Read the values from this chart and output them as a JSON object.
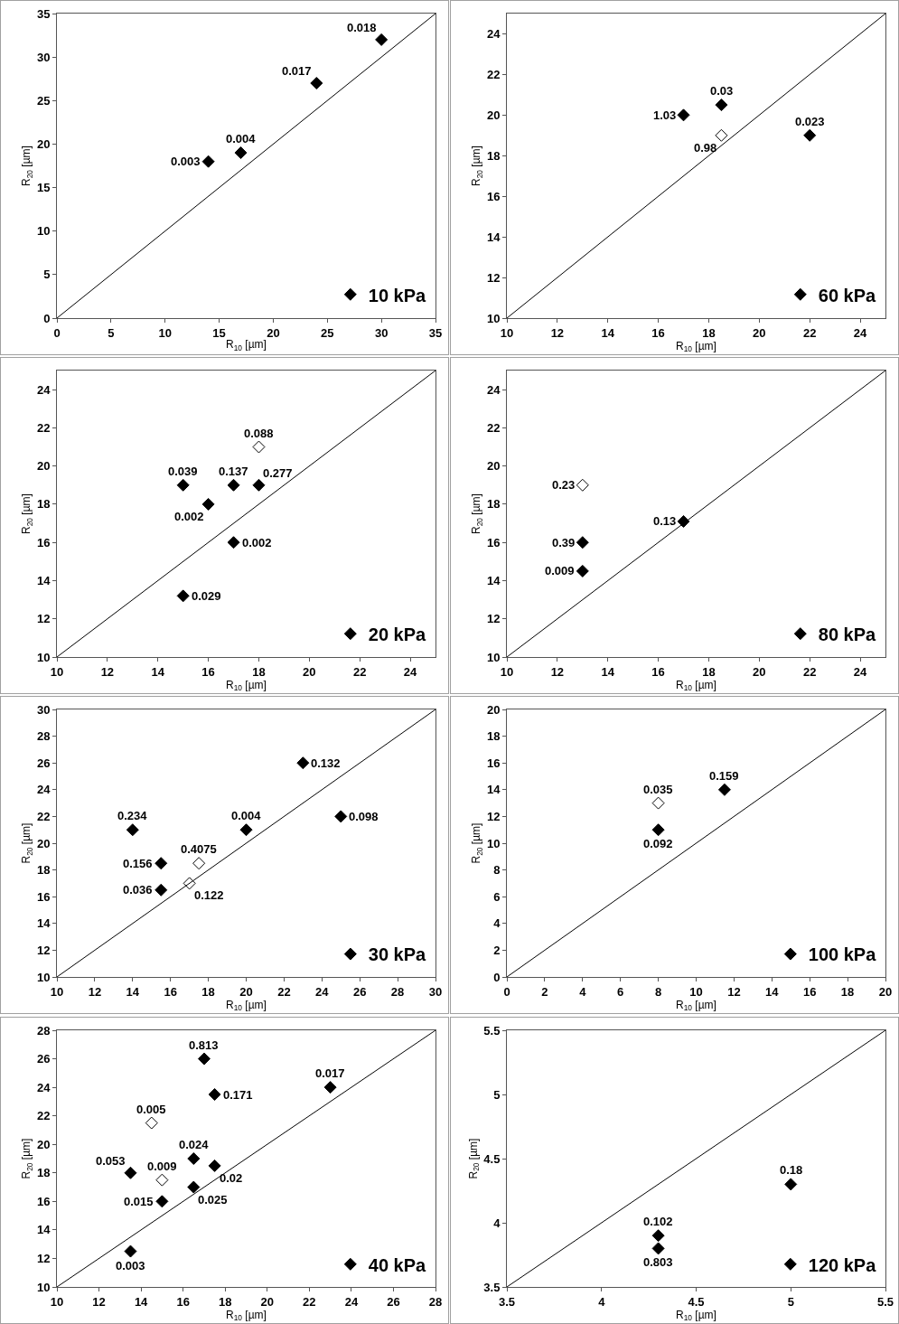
{
  "chart_data": [
    {
      "type": "scatter",
      "xlabel": "R$_{10}$ [µm]",
      "ylabel": "R$_{20}$ [µm]",
      "xlim": [
        0,
        35
      ],
      "xticks": [
        0,
        5,
        10,
        15,
        20,
        25,
        30,
        35
      ],
      "ylim": [
        0,
        35
      ],
      "yticks": [
        0,
        5,
        10,
        15,
        20,
        25,
        30,
        35
      ],
      "legend": "bottom right",
      "marker": "diamond",
      "series": [
        {
          "name": "10 kPa",
          "color": "#000000",
          "x": [
            14,
            17,
            24,
            30
          ],
          "values": [
            18,
            19,
            27,
            32
          ]
        },
        {
          "type": "line",
          "marker": "none",
          "color": "#000000",
          "x": [
            0,
            35
          ],
          "values": [
            0,
            35
          ]
        }
      ],
      "annotations": [
        {
          "text": "0.003",
          "x": 14,
          "y": 18
        },
        {
          "text": "0.004",
          "x": 17,
          "y": 19
        },
        {
          "text": "0.017",
          "x": 24,
          "y": 27
        },
        {
          "text": "0.018",
          "x": 30,
          "y": 32
        }
      ]
    },
    {
      "type": "scatter",
      "xlabel": "R$_{10}$ [µm]",
      "ylabel": "R$_{20}$ [µm]",
      "xlim": [
        10,
        25
      ],
      "xticks": [
        10,
        12,
        14,
        16,
        18,
        20,
        22,
        24
      ],
      "ylim": [
        10,
        25
      ],
      "yticks": [
        10,
        12,
        14,
        16,
        18,
        20,
        22,
        24
      ],
      "legend": "bottom right",
      "marker": "diamond",
      "series": [
        {
          "name": "60 kPa",
          "color": "#000000",
          "x": [
            17,
            18.5,
            22
          ],
          "values": [
            20,
            20.5,
            19
          ]
        },
        {
          "color": "#ffffff",
          "x": [
            18.5
          ],
          "values": [
            19
          ]
        },
        {
          "type": "line",
          "marker": "none",
          "color": "#000000",
          "x": [
            10,
            25
          ],
          "values": [
            10,
            25
          ]
        }
      ],
      "annotations": [
        {
          "text": "1.03",
          "x": 17,
          "y": 20
        },
        {
          "text": "0.03",
          "x": 18.5,
          "y": 20.5
        },
        {
          "text": "0.023",
          "x": 22,
          "y": 19
        },
        {
          "text": "0.98",
          "x": 18.5,
          "y": 19
        }
      ]
    },
    {
      "type": "scatter",
      "xlabel": "R$_{10}$ [µm]",
      "ylabel": "R$_{20}$ [µm]",
      "xlim": [
        10,
        25
      ],
      "xticks": [
        10,
        12,
        14,
        16,
        18,
        20,
        22,
        24
      ],
      "ylim": [
        10,
        25
      ],
      "yticks": [
        10,
        12,
        14,
        16,
        18,
        20,
        22,
        24
      ],
      "legend": "bottom right",
      "marker": "diamond",
      "series": [
        {
          "name": "20 kPa",
          "color": "#000000",
          "x": [
            15,
            16,
            17,
            18,
            17,
            15
          ],
          "values": [
            19,
            18,
            19,
            19,
            16,
            13.2
          ]
        },
        {
          "color": "#ffffff",
          "x": [
            18
          ],
          "values": [
            21
          ]
        },
        {
          "type": "line",
          "marker": "none",
          "color": "#000000",
          "x": [
            10,
            25
          ],
          "values": [
            10,
            25
          ]
        }
      ],
      "annotations": [
        {
          "text": "0.039",
          "x": 15,
          "y": 19
        },
        {
          "text": "0.002",
          "x": 16,
          "y": 18
        },
        {
          "text": "0.137",
          "x": 17,
          "y": 19
        },
        {
          "text": "0.277",
          "x": 18,
          "y": 19
        },
        {
          "text": "0.002",
          "x": 17,
          "y": 16
        },
        {
          "text": "0.029",
          "x": 15,
          "y": 13.2
        },
        {
          "text": "0.088",
          "x": 18,
          "y": 21
        }
      ]
    },
    {
      "type": "scatter",
      "xlabel": "R$_{10}$ [µm]",
      "ylabel": "R$_{20}$ [µm]",
      "xlim": [
        10,
        25
      ],
      "xticks": [
        10,
        12,
        14,
        16,
        18,
        20,
        22,
        24
      ],
      "ylim": [
        10,
        25
      ],
      "yticks": [
        10,
        12,
        14,
        16,
        18,
        20,
        22,
        24
      ],
      "legend": "bottom right",
      "marker": "diamond",
      "series": [
        {
          "name": "80 kPa",
          "color": "#000000",
          "x": [
            13,
            13,
            17
          ],
          "values": [
            16,
            14.5,
            17.1
          ]
        },
        {
          "color": "#ffffff",
          "x": [
            13
          ],
          "values": [
            19
          ]
        },
        {
          "type": "line",
          "marker": "none",
          "color": "#000000",
          "x": [
            10,
            25
          ],
          "values": [
            10,
            25
          ]
        }
      ],
      "annotations": [
        {
          "text": "0.39",
          "x": 13,
          "y": 16
        },
        {
          "text": "0.009",
          "x": 13,
          "y": 14.5
        },
        {
          "text": "0.13",
          "x": 17,
          "y": 17.1
        },
        {
          "text": "0.23",
          "x": 13,
          "y": 19
        }
      ]
    },
    {
      "type": "scatter",
      "xlabel": "R$_{10}$ [µm]",
      "ylabel": "R$_{20}$ [µm]",
      "xlim": [
        10,
        30
      ],
      "xticks": [
        10,
        12,
        14,
        16,
        18,
        20,
        22,
        24,
        26,
        28,
        30
      ],
      "ylim": [
        10,
        30
      ],
      "yticks": [
        10,
        12,
        14,
        16,
        18,
        20,
        22,
        24,
        26,
        28,
        30
      ],
      "legend": "bottom right",
      "marker": "diamond",
      "series": [
        {
          "name": "30 kPa",
          "color": "#000000",
          "x": [
            14,
            15.5,
            15.5,
            20,
            23,
            25
          ],
          "values": [
            21,
            18.5,
            16.5,
            21,
            26,
            22
          ]
        },
        {
          "color": "#ffffff",
          "x": [
            17.5,
            17
          ],
          "values": [
            18.5,
            17
          ]
        },
        {
          "type": "line",
          "marker": "none",
          "color": "#000000",
          "x": [
            10,
            30
          ],
          "values": [
            10,
            30
          ]
        }
      ],
      "annotations": [
        {
          "text": "0.234",
          "x": 14,
          "y": 21
        },
        {
          "text": "0.156",
          "x": 15.5,
          "y": 18.5
        },
        {
          "text": "0.036",
          "x": 15.5,
          "y": 16.5
        },
        {
          "text": "0.004",
          "x": 20,
          "y": 21
        },
        {
          "text": "0.132",
          "x": 23,
          "y": 26
        },
        {
          "text": "0.098",
          "x": 25,
          "y": 22
        },
        {
          "text": "0.4075",
          "x": 17.5,
          "y": 18.5
        },
        {
          "text": "0.122",
          "x": 17,
          "y": 17
        }
      ]
    },
    {
      "type": "scatter",
      "xlabel": "R$_{10}$ [µm]",
      "ylabel": "R$_{20}$ [µm]",
      "xlim": [
        0,
        20
      ],
      "xticks": [
        0,
        2,
        4,
        6,
        8,
        10,
        12,
        14,
        16,
        18,
        20
      ],
      "ylim": [
        0,
        20
      ],
      "yticks": [
        0,
        2,
        4,
        6,
        8,
        10,
        12,
        14,
        16,
        18,
        20
      ],
      "legend": "bottom right",
      "marker": "diamond",
      "series": [
        {
          "name": "100 kPa",
          "color": "#000000",
          "x": [
            8,
            11.5
          ],
          "values": [
            11,
            14
          ]
        },
        {
          "color": "#ffffff",
          "x": [
            8
          ],
          "values": [
            13
          ]
        },
        {
          "type": "line",
          "marker": "none",
          "color": "#000000",
          "x": [
            0,
            20
          ],
          "values": [
            0,
            20
          ]
        }
      ],
      "annotations": [
        {
          "text": "0.092",
          "x": 8,
          "y": 11
        },
        {
          "text": "0.159",
          "x": 11.5,
          "y": 14
        },
        {
          "text": "0.035",
          "x": 8,
          "y": 13
        }
      ]
    },
    {
      "type": "scatter",
      "xlabel": "R$_{10}$ [µm]",
      "ylabel": "R$_{20}$ [µm]",
      "xlim": [
        10,
        28
      ],
      "xticks": [
        10,
        12,
        14,
        16,
        18,
        20,
        22,
        24,
        26,
        28
      ],
      "ylim": [
        10,
        28
      ],
      "yticks": [
        10,
        12,
        14,
        16,
        18,
        20,
        22,
        24,
        26,
        28
      ],
      "legend": "bottom right",
      "marker": "diamond",
      "series": [
        {
          "name": "40 kPa",
          "color": "#000000",
          "x": [
            17,
            17.5,
            23,
            13.5,
            16.5,
            17.5,
            16.5,
            15,
            13.5
          ],
          "values": [
            26,
            23.5,
            24,
            18,
            19,
            18.5,
            17,
            16,
            12.5
          ]
        },
        {
          "color": "#ffffff",
          "x": [
            14.5,
            15
          ],
          "values": [
            21.5,
            17.5
          ]
        },
        {
          "type": "line",
          "marker": "none",
          "color": "#000000",
          "x": [
            10,
            28
          ],
          "values": [
            10,
            28
          ]
        }
      ],
      "annotations": [
        {
          "text": "0.813",
          "x": 17,
          "y": 26
        },
        {
          "text": "0.171",
          "x": 17.5,
          "y": 23.5
        },
        {
          "text": "0.017",
          "x": 23,
          "y": 24
        },
        {
          "text": "0.053",
          "x": 13.5,
          "y": 18
        },
        {
          "text": "0.024",
          "x": 16.5,
          "y": 19
        },
        {
          "text": "0.02",
          "x": 17.5,
          "y": 18.5
        },
        {
          "text": "0.025",
          "x": 16.5,
          "y": 17
        },
        {
          "text": "0.015",
          "x": 15,
          "y": 16
        },
        {
          "text": "0.003",
          "x": 13.5,
          "y": 12.5
        },
        {
          "text": "0.005",
          "x": 14.5,
          "y": 21.5
        },
        {
          "text": "0.009",
          "x": 15,
          "y": 17.5
        }
      ]
    },
    {
      "type": "scatter",
      "xlabel": "R$_{10}$ [µm]",
      "ylabel": "R$_{20}$ [µm]",
      "xlim": [
        3.5,
        5.5
      ],
      "xticks": [
        3.5,
        4,
        4.5,
        5,
        5.5
      ],
      "ylim": [
        3.5,
        5.5
      ],
      "yticks": [
        3.5,
        4,
        4.5,
        5,
        5.5
      ],
      "legend": "bottom right",
      "marker": "diamond",
      "series": [
        {
          "name": "120 kPa",
          "color": "#000000",
          "x": [
            4.3,
            4.3,
            5
          ],
          "values": [
            3.9,
            3.8,
            4.3
          ]
        },
        {
          "type": "line",
          "marker": "none",
          "color": "#000000",
          "x": [
            3.5,
            5.5
          ],
          "values": [
            3.5,
            5.5
          ]
        }
      ],
      "annotations": [
        {
          "text": "0.102",
          "x": 4.3,
          "y": 3.9
        },
        {
          "text": "0.803",
          "x": 4.3,
          "y": 3.8
        },
        {
          "text": "0.18",
          "x": 5,
          "y": 4.3
        }
      ]
    }
  ]
}
